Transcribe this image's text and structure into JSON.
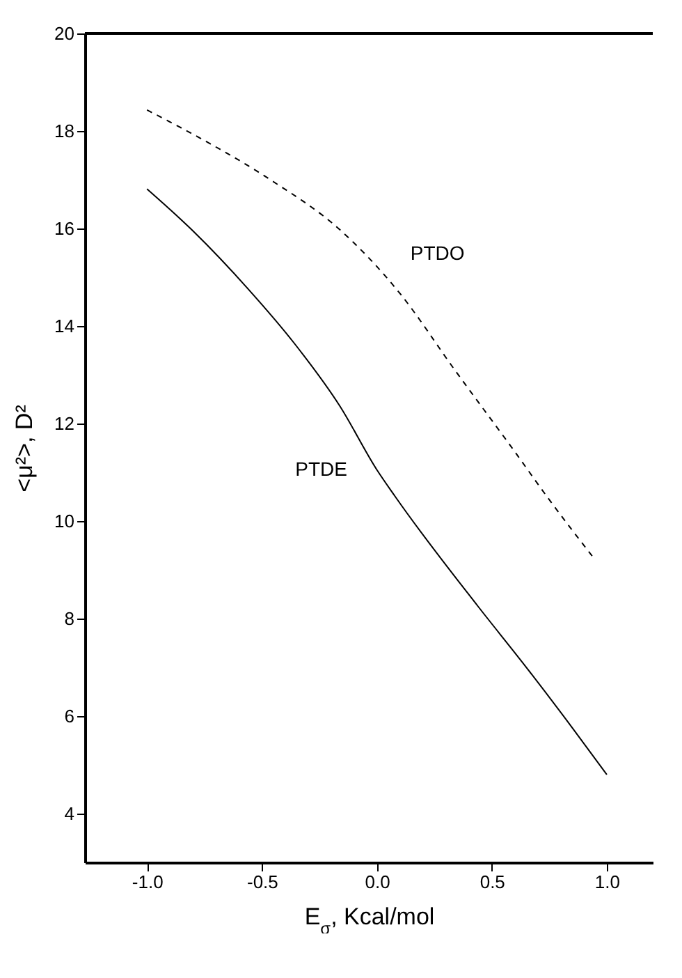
{
  "chart_data": {
    "type": "line",
    "xlabel": "E$_{σ}$, Kcal/mol",
    "ylabel": "<μ²>, D²",
    "xlim": [
      -1.27,
      1.2
    ],
    "ylim": [
      3,
      20
    ],
    "xticks": [
      {
        "value": -1,
        "label": "-1.0"
      },
      {
        "value": -0.5,
        "label": "-0.5"
      },
      {
        "value": 0,
        "label": "0.0"
      },
      {
        "value": 0.5,
        "label": "0.5"
      },
      {
        "value": 1,
        "label": "1.0"
      }
    ],
    "yticks": [
      4,
      6,
      8,
      10,
      12,
      14,
      16,
      18,
      20
    ],
    "series": [
      {
        "name": "PTDO",
        "color": "#000000",
        "line_style": "dashed",
        "x": [
          -1.0,
          -0.76,
          -0.46,
          -0.16,
          0.1,
          0.34,
          0.6,
          0.74,
          0.95
        ],
        "values": [
          18.43,
          17.83,
          16.99,
          15.97,
          14.67,
          13.09,
          11.42,
          10.5,
          9.2
        ]
      },
      {
        "name": "PTDE",
        "color": "#000000",
        "line_style": "solid",
        "x": [
          -1.0,
          -0.8,
          -0.56,
          -0.36,
          -0.16,
          0.0,
          0.08,
          0.44,
          0.64,
          0.85,
          1.0
        ],
        "values": [
          16.81,
          15.95,
          14.76,
          13.65,
          12.35,
          11.05,
          10.5,
          8.25,
          7.06,
          5.76,
          4.8
        ]
      }
    ]
  }
}
